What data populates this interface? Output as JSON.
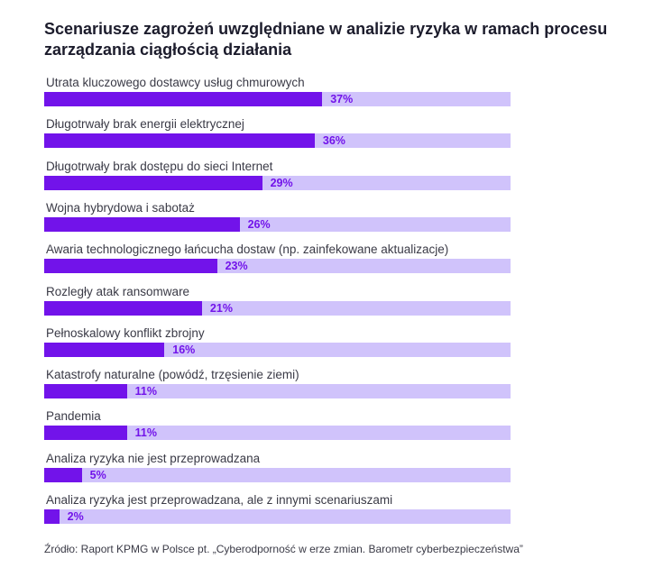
{
  "chart_data": {
    "type": "bar",
    "orientation": "horizontal",
    "title": "Scenariusze zagrożeń uwzględniane w analizie ryzyka w ramach procesu zarządzania ciągłością działania",
    "categories": [
      "Utrata kluczowego dostawcy usług chmurowych",
      "Długotrwały brak energii elektrycznej",
      "Długotrwały brak dostępu do sieci Internet",
      "Wojna hybrydowa i sabotaż",
      "Awaria technologicznego łańcucha dostaw (np. zainfekowane aktualizacje)",
      "Rozległy atak ransomware",
      "Pełnoskalowy konflikt zbrojny",
      "Katastrofy naturalne (powódź, trzęsienie ziemi)",
      "Pandemia",
      "Analiza ryzyka nie jest przeprowadzana",
      "Analiza ryzyka jest przeprowadzana, ale z innymi scenariuszami"
    ],
    "values": [
      37,
      36,
      29,
      26,
      23,
      21,
      16,
      11,
      11,
      5,
      2
    ],
    "value_labels": [
      "37%",
      "36%",
      "29%",
      "26%",
      "23%",
      "21%",
      "16%",
      "11%",
      "11%",
      "5%",
      "2%"
    ],
    "unit": "%",
    "colors": {
      "bar": "#7213ea",
      "track": "#d0c3fb",
      "value_label": "#7213ea"
    },
    "grid": false
  },
  "source": "Źródło: Raport KPMG w Polsce pt. „Cyberodporność w erze zmian. Barometr cyberbezpieczeństwa”"
}
